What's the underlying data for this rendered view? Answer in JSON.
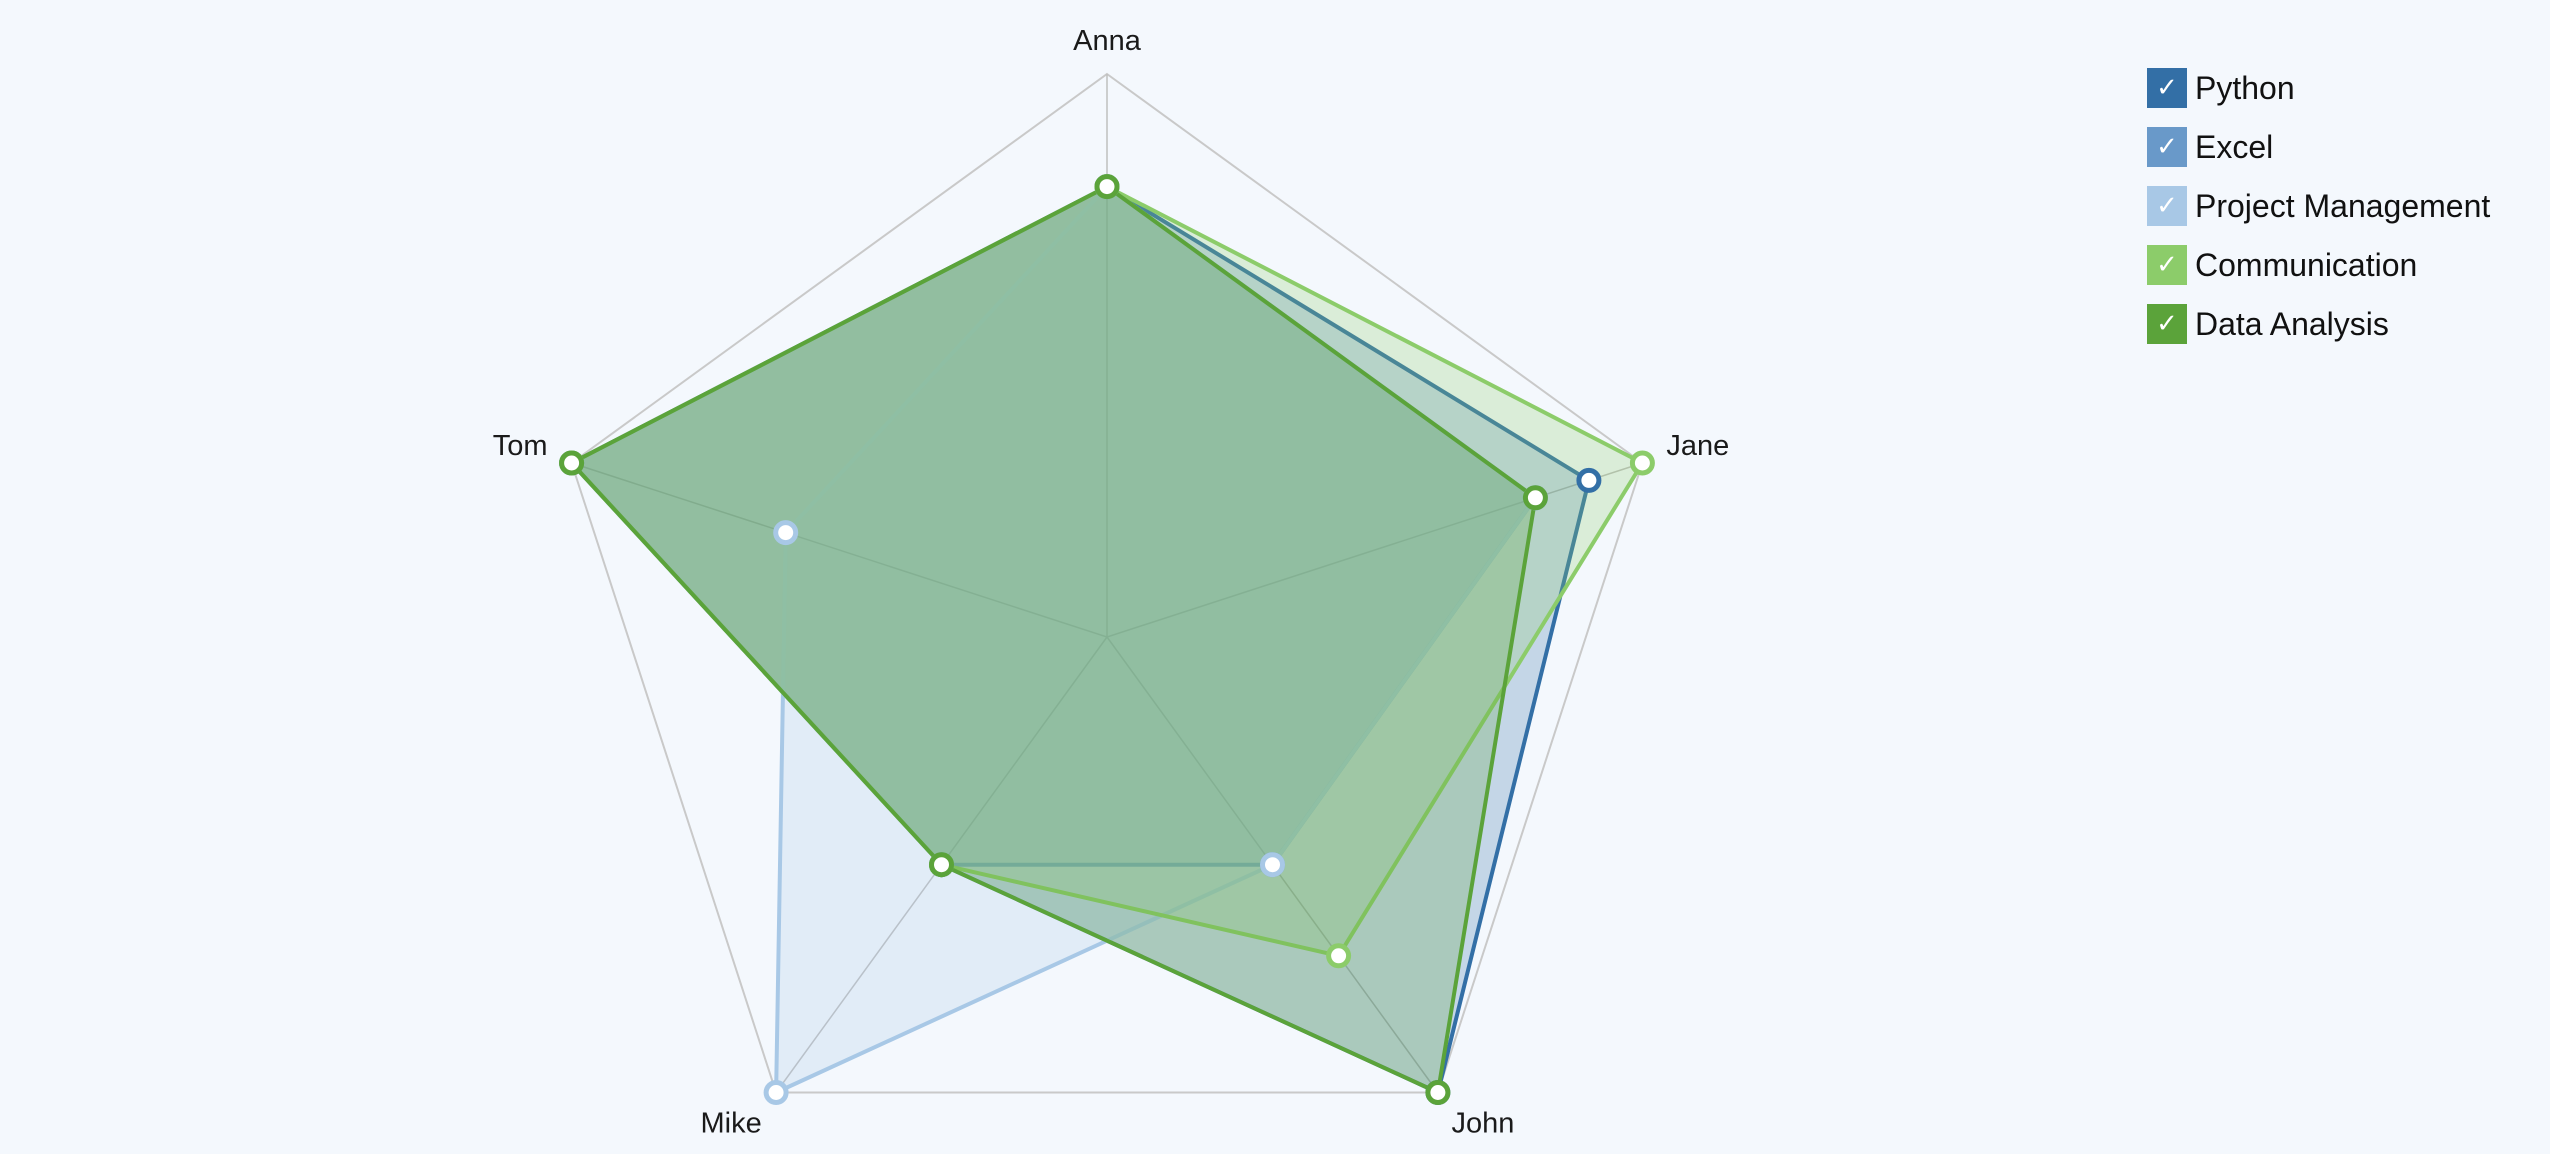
{
  "chart_data": {
    "type": "radar",
    "axes": [
      "Anna",
      "Jane",
      "John",
      "Mike",
      "Tom"
    ],
    "range": [
      0,
      10
    ],
    "grid": "outer-pentagon-and-spokes",
    "legend_position": "top-right",
    "series": [
      {
        "name": "Python",
        "color": "#336fa6",
        "values": [
          8,
          9,
          10,
          5,
          10
        ]
      },
      {
        "name": "Excel",
        "color": "#6999c9",
        "values": [
          8,
          8,
          5,
          5,
          10
        ]
      },
      {
        "name": "Project Management",
        "color": "#a8c8e6",
        "values": [
          8,
          8,
          5,
          10,
          6
        ]
      },
      {
        "name": "Communication",
        "color": "#8ccc6a",
        "values": [
          8,
          10,
          7,
          5,
          10
        ]
      },
      {
        "name": "Data Analysis",
        "color": "#5ba33a",
        "values": [
          8,
          8,
          10,
          5,
          10
        ]
      }
    ]
  },
  "legend": {
    "check_glyph": "✓",
    "items": [
      {
        "label": "Python",
        "color": "#336fa6"
      },
      {
        "label": "Excel",
        "color": "#6999c9"
      },
      {
        "label": "Project Management",
        "color": "#a8c8e6"
      },
      {
        "label": "Communication",
        "color": "#8ccc6a"
      },
      {
        "label": "Data Analysis",
        "color": "#5ba33a"
      }
    ]
  }
}
